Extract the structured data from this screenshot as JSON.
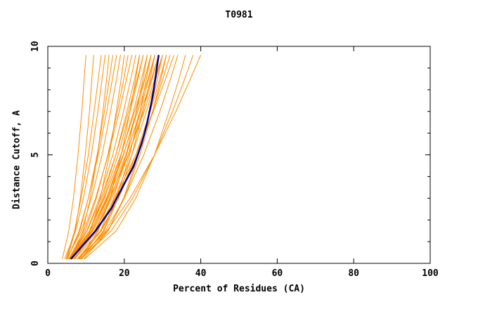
{
  "chart_data": {
    "type": "line",
    "title": "T0981",
    "xlabel": "Percent of Residues (CA)",
    "ylabel": "Distance Cutoff, A",
    "xlim": [
      0,
      100
    ],
    "ylim": [
      0,
      10
    ],
    "xticks": [
      0,
      20,
      40,
      60,
      80,
      100
    ],
    "yticks_major": [
      0,
      5,
      10
    ],
    "yticks_minor_step": 1,
    "grid": false,
    "legend": "none",
    "orange_color": "#FF8C00",
    "median_color": "#00008B",
    "y_anchors": [
      0.2,
      1.5,
      3,
      5,
      7,
      8.5,
      9.6
    ],
    "orange_series": [
      [
        3.8,
        5.5,
        6.7,
        7.9,
        8.9,
        9.5,
        10
      ],
      [
        5.0,
        7.2,
        8.5,
        9.8,
        10.9,
        11.5,
        12
      ],
      [
        4.8,
        7.0,
        8.7,
        10.6,
        12.1,
        13.2,
        14
      ],
      [
        4.4,
        7.3,
        9.3,
        11.4,
        13.1,
        14.2,
        15
      ],
      [
        6.1,
        9.2,
        11.1,
        13.0,
        14.4,
        15.4,
        16
      ],
      [
        5.1,
        8.4,
        10.6,
        12.9,
        14.8,
        16.1,
        17
      ],
      [
        5.1,
        8.2,
        10.6,
        13.2,
        15.4,
        16.9,
        18
      ],
      [
        4.9,
        8.8,
        11.4,
        14.2,
        16.4,
        18.0,
        19
      ],
      [
        7.2,
        11.2,
        13.7,
        16.1,
        17.9,
        19.2,
        20
      ],
      [
        5.6,
        9.8,
        12.7,
        15.7,
        18.2,
        19.9,
        21
      ],
      [
        5.5,
        9.4,
        12.5,
        15.8,
        18.7,
        20.6,
        22
      ],
      [
        5.4,
        10.2,
        13.5,
        17.0,
        19.8,
        21.7,
        23
      ],
      [
        8.3,
        13.2,
        16.3,
        19.2,
        21.5,
        23.0,
        24
      ],
      [
        5.9,
        10.9,
        14.3,
        17.8,
        20.7,
        22.7,
        24
      ],
      [
        5.7,
        10.3,
        13.9,
        17.8,
        21.1,
        23.4,
        25
      ],
      [
        5.6,
        10.9,
        14.6,
        18.4,
        21.5,
        23.6,
        25
      ],
      [
        8.3,
        13.8,
        17.2,
        20.5,
        23.1,
        24.9,
        26
      ],
      [
        6.2,
        11.6,
        15.4,
        19.2,
        22.4,
        24.5,
        26
      ],
      [
        5.9,
        10.9,
        14.8,
        19.1,
        22.7,
        25.3,
        27
      ],
      [
        5.9,
        11.6,
        15.6,
        19.8,
        23.2,
        25.4,
        27
      ],
      [
        8.9,
        14.5,
        18.0,
        21.4,
        24.1,
        25.8,
        27
      ],
      [
        6.4,
        12.3,
        16.4,
        20.6,
        24.1,
        26.4,
        28
      ],
      [
        5.9,
        11.2,
        15.3,
        19.7,
        23.5,
        26.2,
        28
      ],
      [
        8.6,
        14.7,
        18.4,
        22.0,
        24.9,
        26.8,
        28
      ],
      [
        6.1,
        12.4,
        16.7,
        21.1,
        24.8,
        27.3,
        29
      ],
      [
        6.0,
        11.5,
        15.8,
        20.4,
        24.4,
        27.1,
        29
      ],
      [
        9.4,
        15.8,
        19.8,
        23.7,
        26.7,
        28.7,
        30
      ],
      [
        6.7,
        13.0,
        17.5,
        22.0,
        25.8,
        28.3,
        30
      ],
      [
        6.1,
        11.8,
        16.2,
        21.0,
        25.2,
        28.0,
        30
      ],
      [
        7.7,
        14.0,
        18.5,
        23.0,
        26.8,
        29.3,
        31
      ],
      [
        8.8,
        15.7,
        20.0,
        24.1,
        27.4,
        29.6,
        31
      ],
      [
        6.9,
        13.8,
        18.5,
        23.4,
        27.4,
        30.1,
        32
      ],
      [
        6.3,
        12.7,
        17.6,
        23.0,
        27.6,
        30.8,
        33
      ],
      [
        8.0,
        15.1,
        20.0,
        25.1,
        29.3,
        32.1,
        34
      ],
      [
        9.6,
        17.9,
        23.0,
        27.9,
        31.7,
        34.3,
        36
      ],
      [
        8.5,
        16.6,
        22.2,
        27.9,
        32.6,
        35.8,
        38
      ],
      [
        7.8,
        15.5,
        21.5,
        27.9,
        33.5,
        37.3,
        40
      ]
    ],
    "median_series": {
      "name": "median",
      "y": [
        0.2,
        0.5,
        1,
        1.5,
        2,
        2.5,
        3,
        3.5,
        4,
        4.5,
        5,
        5.5,
        6,
        6.5,
        7,
        7.5,
        8,
        8.5,
        9,
        9.6
      ],
      "x": [
        6,
        7.5,
        10,
        12.5,
        14.5,
        16.5,
        18,
        19.5,
        21,
        22.5,
        23.5,
        24.5,
        25.3,
        26,
        26.6,
        27.2,
        27.7,
        28.1,
        28.5,
        29
      ]
    }
  }
}
